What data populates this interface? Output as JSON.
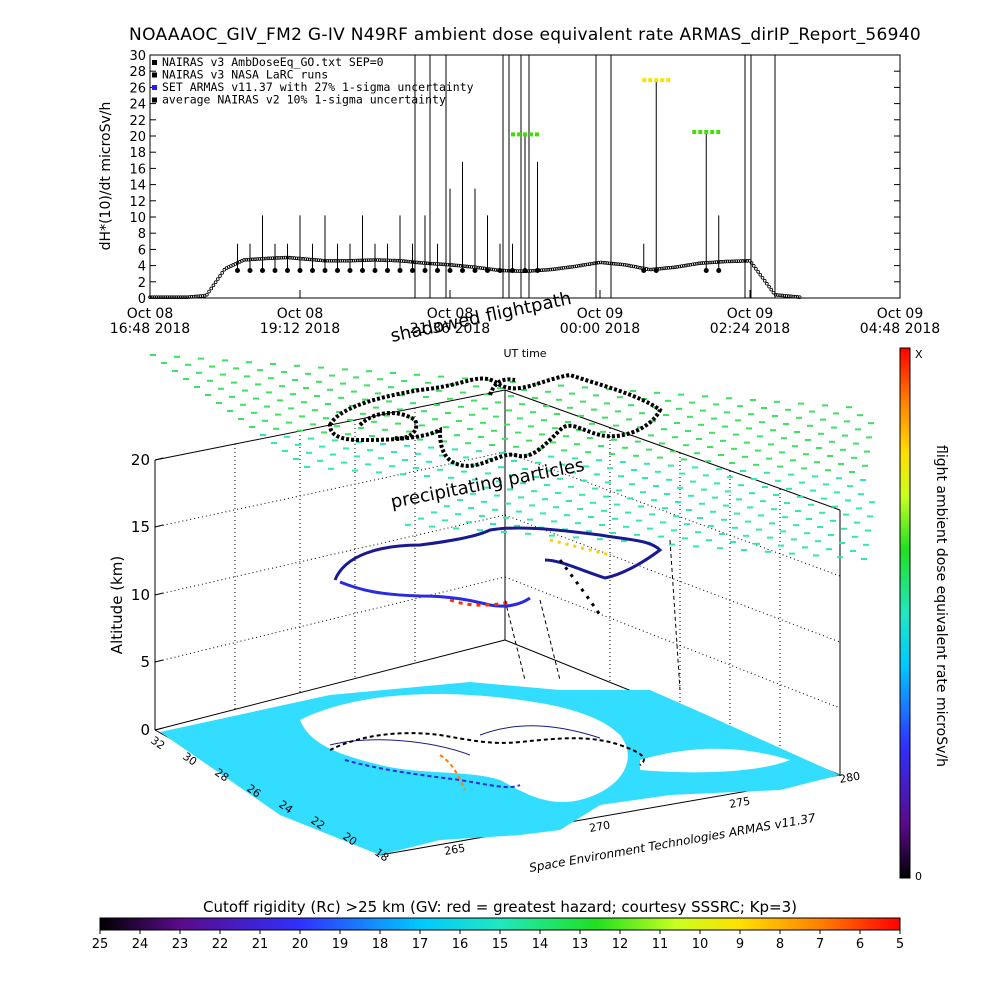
{
  "title": "NOAAAOC_GIV_FM2 G-IV   N49RF  ambient dose equivalent rate ARMAS_dirIP_Report_56940",
  "chart_data": [
    {
      "type": "scatter",
      "ylabel": "dH*(10)/dt microSv/h",
      "xlabel": "UT time",
      "ylim": [
        0,
        30
      ],
      "xlim": [
        "Oct 08 16:48 2018",
        "Oct 09 04:48 2018"
      ],
      "yticks": [
        "0",
        "2",
        "4",
        "6",
        "8",
        "10",
        "12",
        "14",
        "16",
        "18",
        "20",
        "22",
        "24",
        "26",
        "28",
        "30"
      ],
      "xticks": [
        {
          "date": "Oct 08",
          "time": "16:48 2018"
        },
        {
          "date": "Oct 08",
          "time": "19:12 2018"
        },
        {
          "date": "Oct 08",
          "time": "21:36 2018"
        },
        {
          "date": "Oct 09",
          "time": "00:00 2018"
        },
        {
          "date": "Oct 09",
          "time": "02:24 2018"
        },
        {
          "date": "Oct 09",
          "time": "04:48 2018"
        }
      ],
      "legend": [
        {
          "label": "NAIRAS v3 AmbDoseEq_GO.txt SEP=0",
          "color": "#000000"
        },
        {
          "label": "NAIRAS v3 NASA LaRC runs",
          "color": "#000000"
        },
        {
          "label": "SET ARMAS v11.37 with 27% 1-sigma uncertainty",
          "color": "#2020e0"
        },
        {
          "label": "average NAIRAS v2 10% 1-sigma uncertainty",
          "color": "#000000"
        }
      ],
      "legend_position": "top-left",
      "series": [
        {
          "name": "NAIRAS v3 AmbDoseEq_GO.txt SEP=0",
          "x_hours": [
            0.0,
            0.6,
            0.9,
            1.2,
            1.5,
            1.9,
            2.2,
            2.5,
            2.8,
            3.2,
            3.6,
            4.0,
            4.4,
            4.8,
            5.2,
            5.6,
            6.0,
            6.4,
            6.8,
            7.2,
            7.6,
            8.0,
            8.4,
            8.8,
            9.2,
            9.6,
            10.0,
            10.4,
            10.8,
            11.2,
            11.6,
            12.0
          ],
          "y": [
            0.1,
            0.1,
            0.3,
            3.6,
            4.7,
            4.9,
            5.0,
            4.8,
            4.6,
            4.6,
            4.7,
            4.6,
            4.3,
            4.1,
            3.8,
            3.4,
            3.3,
            3.5,
            3.9,
            4.4,
            4.1,
            3.5,
            3.8,
            4.3,
            4.5,
            4.6,
            0.4,
            0.1,
            0.1,
            0.1,
            0.1,
            0.1
          ]
        },
        {
          "name": "SET ARMAS v11.37 with 27% 1-sigma uncertainty",
          "x_hours": [
            1.4,
            1.6,
            1.8,
            2.0,
            2.2,
            2.4,
            2.6,
            2.8,
            3.0,
            3.2,
            3.4,
            3.6,
            3.8,
            4.0,
            4.2,
            4.4,
            4.6,
            4.8,
            5.0,
            5.2,
            5.4,
            5.6,
            5.8,
            6.0,
            6.2,
            7.9,
            8.1,
            8.9,
            9.1
          ],
          "y": [
            6.7,
            6.7,
            10.2,
            6.7,
            6.7,
            10.2,
            6.7,
            10.2,
            6.7,
            6.7,
            10.2,
            6.7,
            6.7,
            10.2,
            6.7,
            10.2,
            6.7,
            13.5,
            16.8,
            13.5,
            10.2,
            6.7,
            6.7,
            20.2,
            16.8,
            6.7,
            26.9,
            20.5,
            10.2
          ]
        }
      ],
      "colors": {
        "armas_low": "#2a0a8a",
        "armas_mid": "#2f40ff",
        "armas_hi": "#20c8ff",
        "green": "#40e000",
        "yellow": "#ffe000"
      }
    },
    {
      "type": "scatter",
      "title_labels": {
        "shadow": "shadowed flightpath",
        "particles": "precipitating particles",
        "credit": "Space Environment Technologies ARMAS v11.37",
        "zlabel": "Altitude (km)"
      },
      "zticks": [
        "0",
        "5",
        "10",
        "15",
        "20"
      ],
      "lat_ticks": [
        "32",
        "30",
        "28",
        "26",
        "24",
        "22",
        "20",
        "18"
      ],
      "lon_ticks": [
        "265",
        "270",
        "275",
        "280"
      ],
      "colorbar": {
        "label": "flight ambient dose equivalent rate microSv/h",
        "top": "X",
        "bottom": "0"
      }
    }
  ],
  "rigidity_bar": {
    "label": "Cutoff rigidity (Rc) >25 km (GV: red = greatest hazard; courtesy SSSRC; Kp=3)",
    "ticks": [
      "25",
      "24",
      "23",
      "22",
      "21",
      "20",
      "19",
      "18",
      "17",
      "16",
      "15",
      "14",
      "13",
      "12",
      "11",
      "10",
      "9",
      "8",
      "7",
      "6",
      "5"
    ]
  }
}
